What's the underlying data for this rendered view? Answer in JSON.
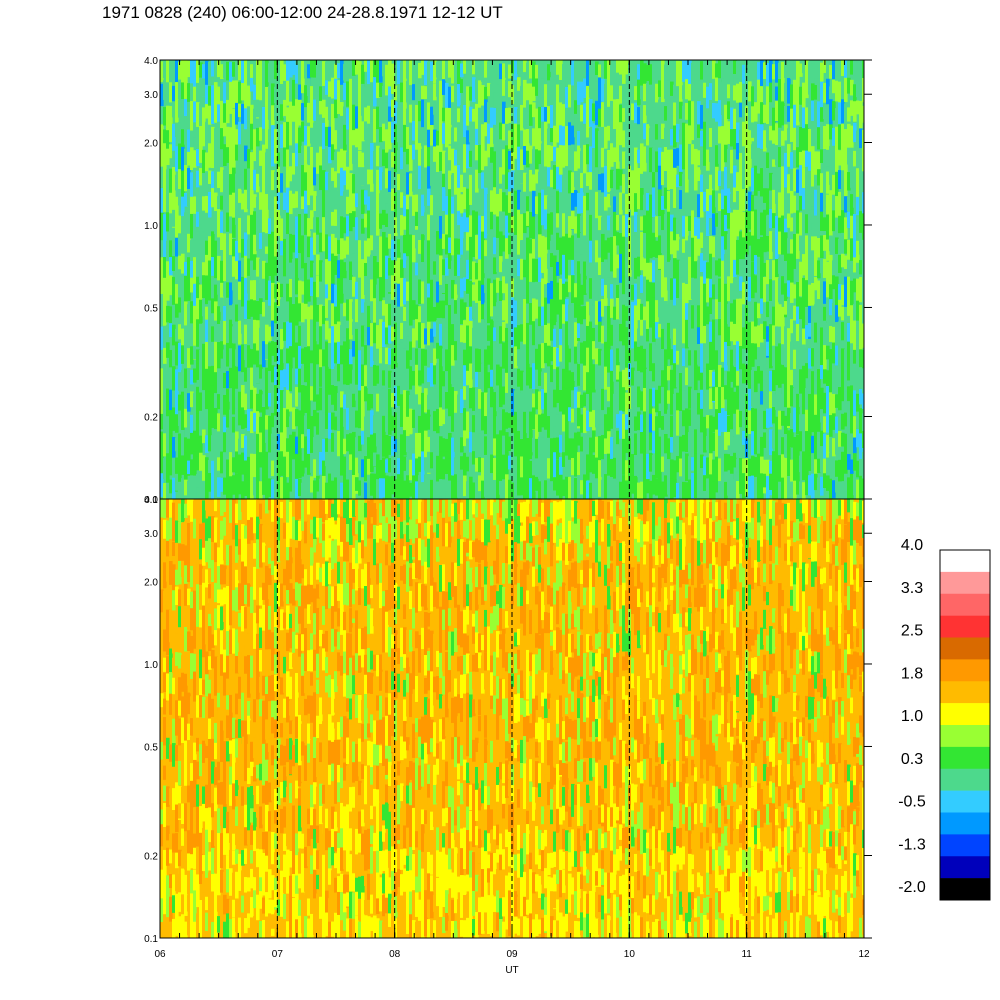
{
  "chart_data": {
    "type": "heatmap",
    "title": "1971 0828 (240) 06:00-12:00 24-28.8.1971  12-12 UT",
    "xlabel": "UT",
    "x_tick_labels": [
      "06",
      "07",
      "08",
      "09",
      "10",
      "11",
      "12"
    ],
    "x_range": [
      6,
      12
    ],
    "y_scale": "log",
    "y_range": [
      0.1,
      4.0
    ],
    "y_tick_labels": [
      "0.1",
      "0.2",
      "0.5",
      "1.0",
      "2.0",
      "3.0",
      "4.0"
    ],
    "y_ticks": [
      0.1,
      0.2,
      0.5,
      1.0,
      2.0,
      3.0,
      4.0
    ],
    "panels": [
      {
        "name": "upper",
        "dominant_levels": "green / cyan (about -0.5 to 1.0)"
      },
      {
        "name": "lower",
        "dominant_levels": "yellow / orange (about 1.0 to 2.5)"
      }
    ],
    "vertical_markers": [
      7,
      8,
      9,
      10,
      11
    ],
    "colorbar": {
      "labels": [
        "4.0",
        "3.3",
        "2.5",
        "1.8",
        "1.0",
        "0.3",
        "-0.5",
        "-1.3",
        "-2.0"
      ],
      "colors_top_to_bottom": [
        "#ffffff",
        "#ff9999",
        "#ff6666",
        "#ff3333",
        "#d96a00",
        "#ff9900",
        "#ffbb00",
        "#ffff00",
        "#99ff33",
        "#33e633",
        "#4dd98c",
        "#33ccff",
        "#0099ff",
        "#0044ff",
        "#0000bb",
        "#000000"
      ]
    }
  }
}
